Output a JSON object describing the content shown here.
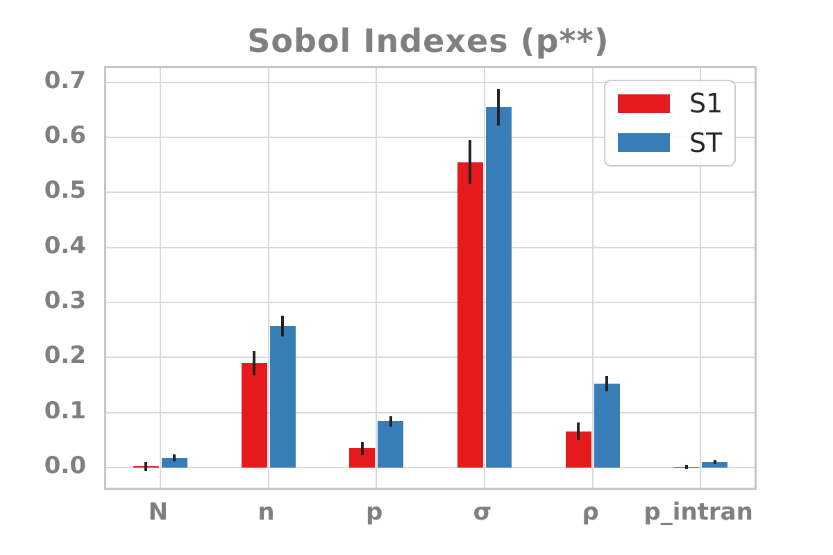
{
  "chart_data": {
    "type": "bar",
    "title": "Sobol Indexes (p**)",
    "xlabel": "",
    "ylabel": "",
    "categories": [
      "N",
      "n",
      "p",
      "σ",
      "ρ",
      "p_intran"
    ],
    "series": [
      {
        "name": "S1",
        "color": "#e41a1c",
        "values": [
          0.002,
          0.19,
          0.035,
          0.555,
          0.066,
          0.001
        ],
        "errors": [
          0.008,
          0.022,
          0.012,
          0.04,
          0.016,
          0.004
        ]
      },
      {
        "name": "ST",
        "color": "#377eb8",
        "values": [
          0.018,
          0.257,
          0.084,
          0.655,
          0.153,
          0.01
        ],
        "errors": [
          0.006,
          0.019,
          0.009,
          0.033,
          0.014,
          0.004
        ]
      }
    ],
    "ylim": [
      -0.0365,
      0.726
    ],
    "yticks": [
      0.0,
      0.1,
      0.2,
      0.3,
      0.4,
      0.5,
      0.6,
      0.7
    ],
    "ytick_labels": [
      "0.0",
      "0.1",
      "0.2",
      "0.3",
      "0.4",
      "0.5",
      "0.6",
      "0.7"
    ],
    "grid": true,
    "legend_position": "upper right",
    "errorbar_color": "#222222",
    "text_color": "#7f7f7f",
    "grid_color": "#d8d8d8",
    "frame_color": "#c6c6c6",
    "background_color": "#ffffff"
  }
}
